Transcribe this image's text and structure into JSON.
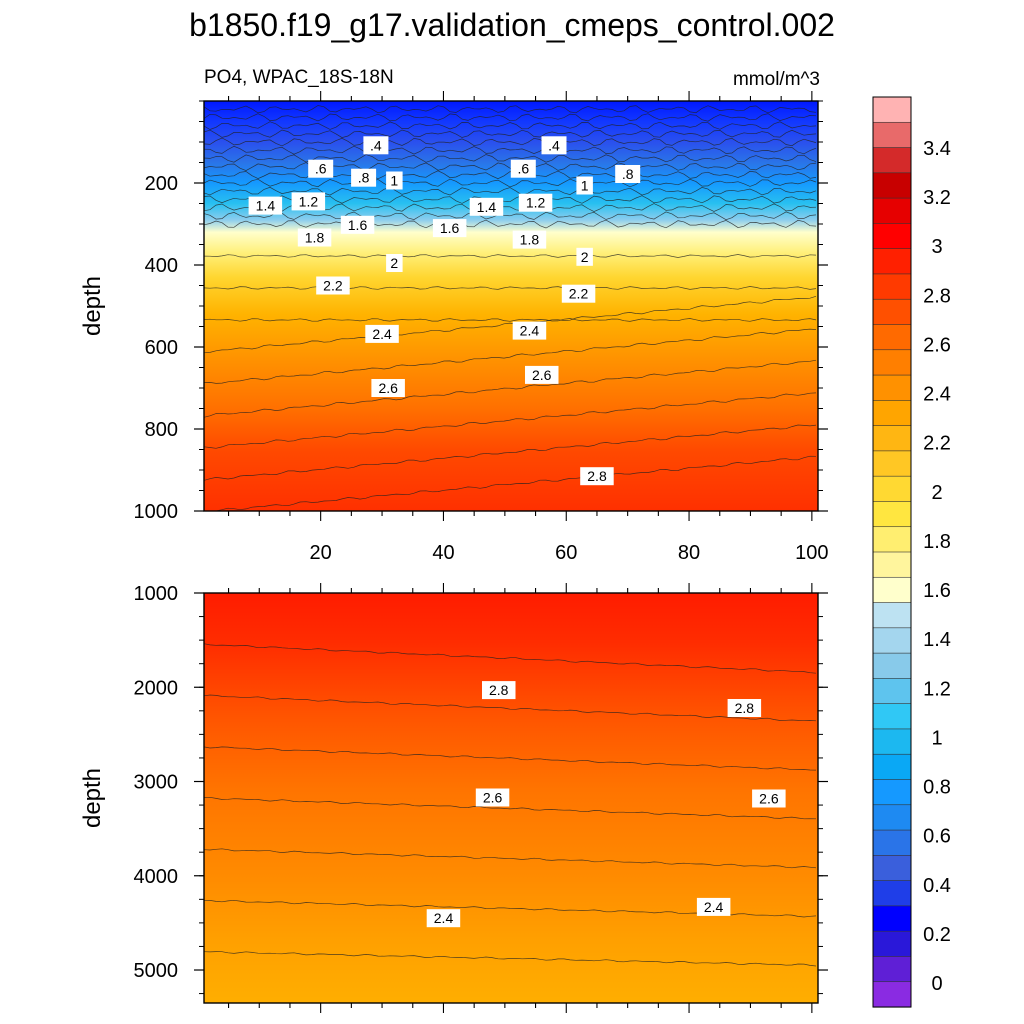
{
  "figure": {
    "title": "b1850.f19_g17.validation_cmeps_control.002",
    "left_label": "PO4, WPAC_18S-18N",
    "right_label": "mmol/m^3"
  },
  "chart_data": [
    {
      "type": "contour",
      "panel": "upper",
      "ylabel": "depth",
      "xlim": [
        1,
        101
      ],
      "ylim": [
        1000,
        0
      ],
      "x_ticks": [
        20,
        40,
        60,
        80,
        100
      ],
      "y_ticks": [
        200,
        400,
        600,
        800,
        1000
      ],
      "contour_labels": [
        {
          "text": ".4",
          "x": 29,
          "y": 108
        },
        {
          "text": ".4",
          "x": 58,
          "y": 108
        },
        {
          "text": ".6",
          "x": 20,
          "y": 165
        },
        {
          "text": ".6",
          "x": 53,
          "y": 165
        },
        {
          "text": ".8",
          "x": 27,
          "y": 187
        },
        {
          "text": "1",
          "x": 32,
          "y": 194
        },
        {
          "text": ".8",
          "x": 70,
          "y": 178
        },
        {
          "text": "1",
          "x": 63,
          "y": 206
        },
        {
          "text": "1.4",
          "x": 11,
          "y": 255
        },
        {
          "text": "1.2",
          "x": 18,
          "y": 245
        },
        {
          "text": "1.4",
          "x": 47,
          "y": 258
        },
        {
          "text": "1.2",
          "x": 55,
          "y": 248
        },
        {
          "text": "1.6",
          "x": 26,
          "y": 302
        },
        {
          "text": "1.6",
          "x": 41,
          "y": 310
        },
        {
          "text": "1.8",
          "x": 19,
          "y": 333
        },
        {
          "text": "1.8",
          "x": 54,
          "y": 338
        },
        {
          "text": "2",
          "x": 32,
          "y": 395
        },
        {
          "text": "2",
          "x": 63,
          "y": 380
        },
        {
          "text": "2.2",
          "x": 22,
          "y": 450
        },
        {
          "text": "2.2",
          "x": 62,
          "y": 470
        },
        {
          "text": "2.4",
          "x": 30,
          "y": 568
        },
        {
          "text": "2.4",
          "x": 54,
          "y": 560
        },
        {
          "text": "2.6",
          "x": 31,
          "y": 700
        },
        {
          "text": "2.6",
          "x": 56,
          "y": 668
        },
        {
          "text": "2.8",
          "x": 65,
          "y": 915
        }
      ]
    },
    {
      "type": "contour",
      "panel": "lower",
      "ylabel": "depth",
      "xlim": [
        1,
        101
      ],
      "ylim": [
        5350,
        1000
      ],
      "x_ticks": [],
      "y_ticks": [
        1000,
        2000,
        3000,
        4000,
        5000
      ],
      "contour_labels": [
        {
          "text": "2.8",
          "x": 49,
          "y": 2030
        },
        {
          "text": "2.8",
          "x": 89,
          "y": 2220
        },
        {
          "text": "2.6",
          "x": 48,
          "y": 3170
        },
        {
          "text": "2.6",
          "x": 93,
          "y": 3180
        },
        {
          "text": "2.4",
          "x": 40,
          "y": 4450
        },
        {
          "text": "2.4",
          "x": 84,
          "y": 4330
        }
      ]
    }
  ],
  "colorbar": {
    "labels": [
      "0",
      "0.2",
      "0.4",
      "0.6",
      "0.8",
      "1",
      "1.2",
      "1.4",
      "1.6",
      "1.8",
      "2",
      "2.2",
      "2.4",
      "2.6",
      "2.8",
      "3",
      "3.2",
      "3.4"
    ],
    "colors": [
      "#8a2be2",
      "#5f1fd6",
      "#2a18d9",
      "#0000ff",
      "#1f3ee8",
      "#3a5fdc",
      "#2a74e8",
      "#1e8af2",
      "#1599ff",
      "#0aa8f5",
      "#1cb8f0",
      "#30c8f5",
      "#5ec4ee",
      "#88caea",
      "#a4d6ee",
      "#bde2f2",
      "#ffffcc",
      "#fff59d",
      "#ffee70",
      "#ffe640",
      "#ffd932",
      "#ffc724",
      "#ffb612",
      "#ffa500",
      "#ff9100",
      "#ff7f00",
      "#ff6a00",
      "#ff5000",
      "#ff3a00",
      "#ff2000",
      "#ff0000",
      "#e60000",
      "#c80000",
      "#d42a2a",
      "#e86a6a",
      "#ffb3b3"
    ]
  }
}
